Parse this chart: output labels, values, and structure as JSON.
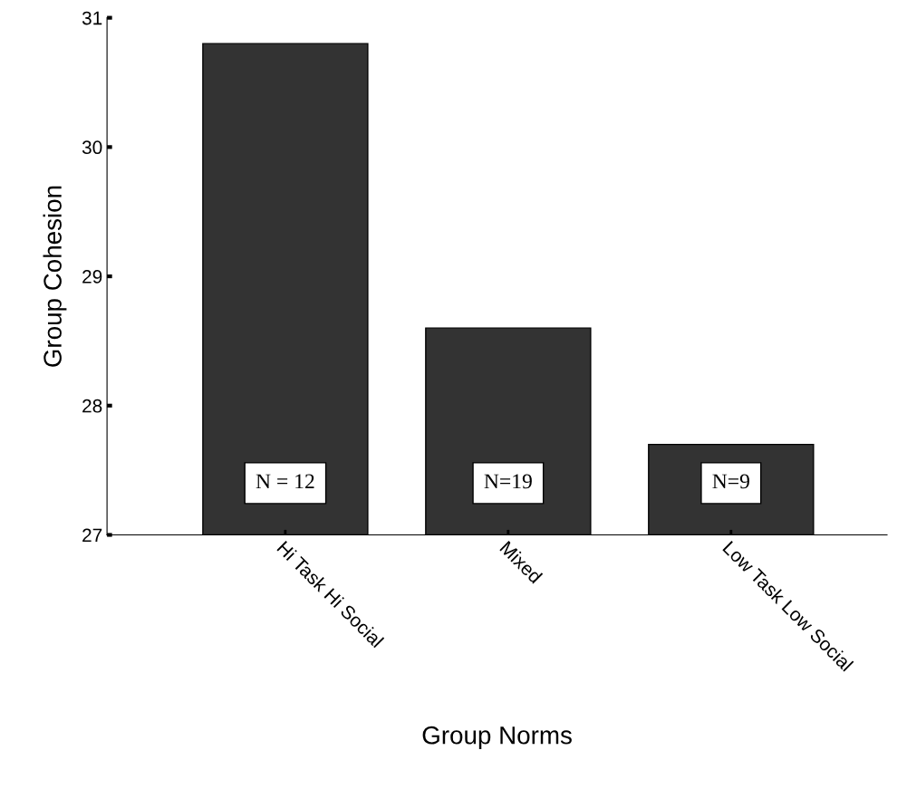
{
  "chart_data": {
    "type": "bar",
    "xlabel": "Group Norms",
    "ylabel": "Group Cohesion",
    "categories": [
      "Hi Task Hi Social",
      "Mixed",
      "Low Task Low Social"
    ],
    "values": [
      30.8,
      28.6,
      27.7
    ],
    "color": "#333333",
    "ylim": [
      27,
      31
    ],
    "yticks": [
      27,
      28,
      29,
      30,
      31
    ],
    "grid": false,
    "annotations": [
      "N = 12",
      "N=19",
      "N=9"
    ]
  }
}
